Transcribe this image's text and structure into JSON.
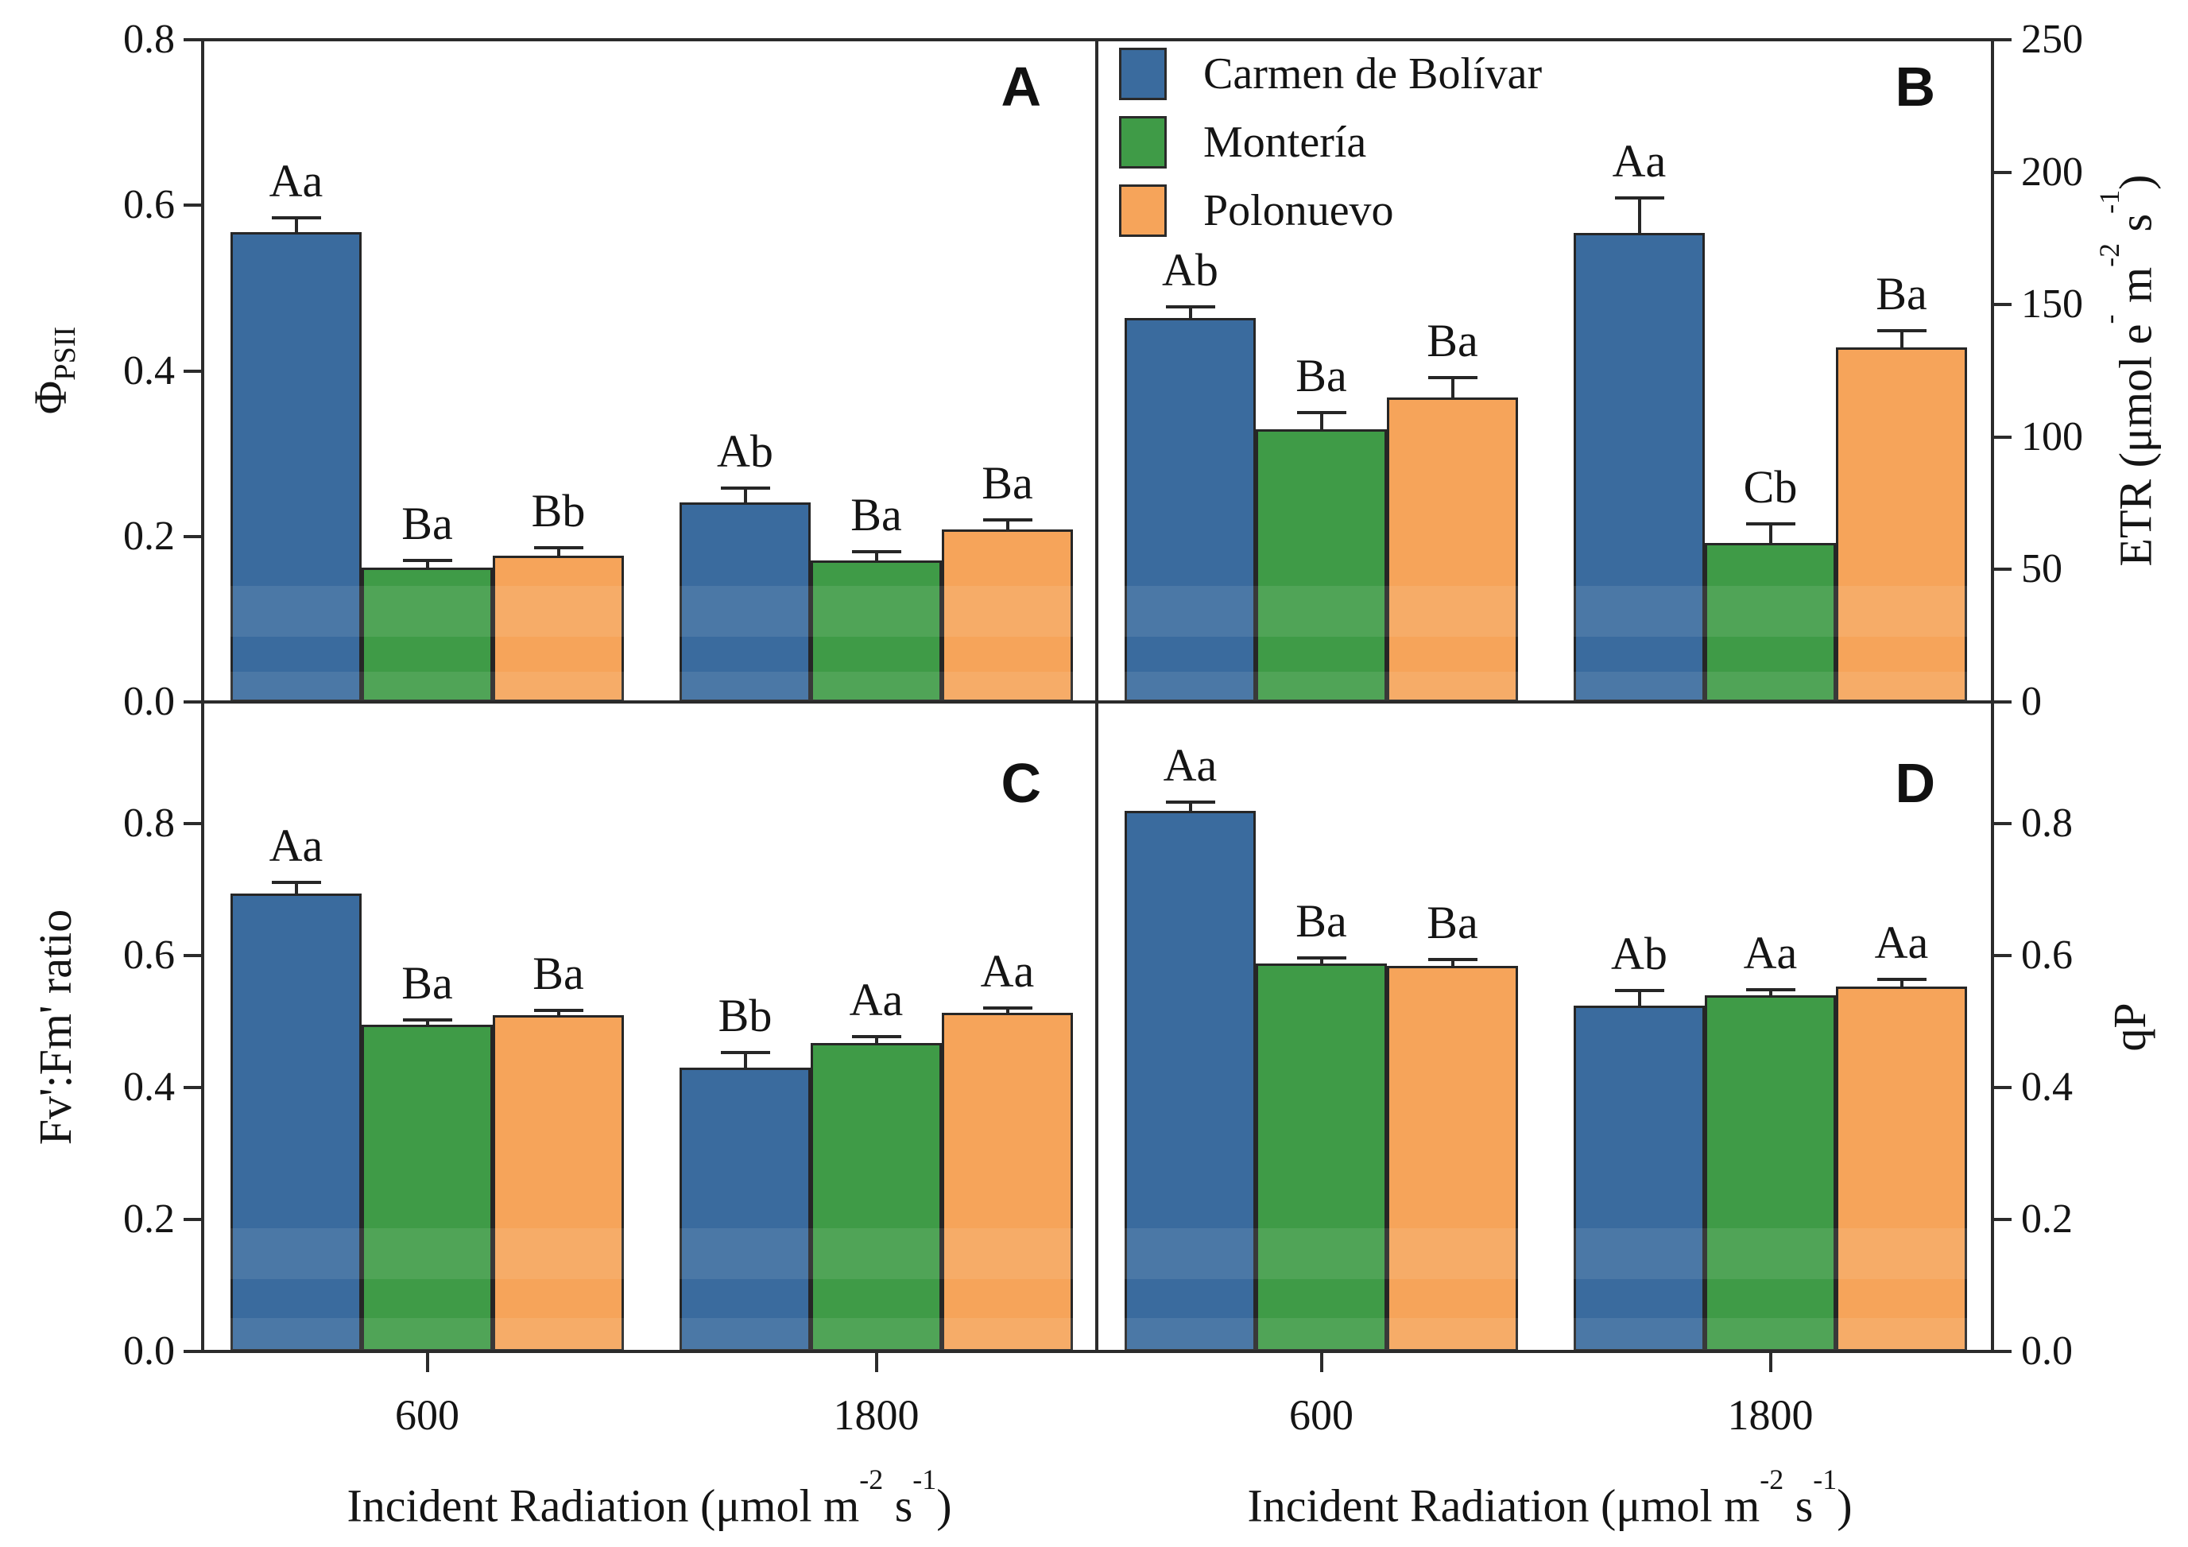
{
  "panels": {
    "a": "A",
    "b": "B",
    "c": "C",
    "d": "D"
  },
  "legend": {
    "items": [
      {
        "label": "Carmen de Bolívar",
        "color": "#3a6b9e"
      },
      {
        "label": "Montería",
        "color": "#3f9b47"
      },
      {
        "label": "Polonuevo",
        "color": "#f6a45a"
      }
    ]
  },
  "axis_titles": {
    "phi_main": "Φ",
    "phi_sub": "PSII",
    "c_label": "Fv':Fm' ratio",
    "d_label": "qP",
    "b_label_full": "ETR (μmol e⁻ m⁻² s⁻¹)",
    "b_parts": {
      "p1": "ETR (μmol e",
      "s1": "-",
      "p2": " m",
      "s2": "-2",
      "p3": " s",
      "s3": "-1",
      "p4": ")"
    }
  },
  "x_axis": {
    "tick_labels": [
      "600",
      "1800"
    ],
    "title_full": "Incident Radiation (μmol m⁻² s⁻¹)",
    "title_parts": {
      "p1": "Incident Radiation (μmol m",
      "s1": "-2",
      "p2": " s",
      "s2": "-1",
      "p3": ")"
    }
  },
  "chart_data": [
    {
      "type": "bar",
      "panel_letter": "A",
      "ylabel": "Φ_PSII",
      "ylabel_side": "left",
      "ylim": [
        0,
        0.8
      ],
      "yticks": [
        0,
        0.2,
        0.4,
        0.6,
        0.8
      ],
      "tick_decimals": true,
      "categories": [
        "600",
        "1800"
      ],
      "xlabel": "",
      "series": [
        {
          "name": "Carmen de Bolívar",
          "name_key": "carmen",
          "values": [
            0.568,
            0.241
          ],
          "errors": [
            0.016,
            0.016
          ],
          "letters": [
            "Aa",
            "Ab"
          ]
        },
        {
          "name": "Montería",
          "name_key": "monteria",
          "values": [
            0.162,
            0.171
          ],
          "errors": [
            0.008,
            0.01
          ],
          "letters": [
            "Ba",
            "Ba"
          ]
        },
        {
          "name": "Polonuevo",
          "name_key": "polonuevo",
          "values": [
            0.177,
            0.208
          ],
          "errors": [
            0.008,
            0.011
          ],
          "letters": [
            "Bb",
            "Ba"
          ]
        }
      ]
    },
    {
      "type": "bar",
      "panel_letter": "B",
      "ylabel": "ETR (μmol e⁻ m⁻² s⁻¹)",
      "ylabel_side": "right",
      "ylim": [
        0,
        250
      ],
      "yticks": [
        0,
        50,
        100,
        150,
        200,
        250
      ],
      "tick_decimals": false,
      "categories": [
        "600",
        "1800"
      ],
      "xlabel": "",
      "series": [
        {
          "name": "Carmen de Bolívar",
          "name_key": "carmen",
          "values": [
            145,
            177
          ],
          "errors": [
            4,
            13
          ],
          "letters": [
            "Ab",
            "Aa"
          ]
        },
        {
          "name": "Montería",
          "name_key": "monteria",
          "values": [
            103,
            60
          ],
          "errors": [
            6,
            7
          ],
          "letters": [
            "Ba",
            "Cb"
          ]
        },
        {
          "name": "Polonuevo",
          "name_key": "polonuevo",
          "values": [
            115,
            134
          ],
          "errors": [
            7,
            6
          ],
          "letters": [
            "Ba",
            "Ba"
          ]
        }
      ]
    },
    {
      "type": "bar",
      "panel_letter": "C",
      "ylabel": "Fv':Fm' ratio",
      "ylabel_side": "left",
      "ylim": [
        0,
        0.985
      ],
      "yticks": [
        0,
        0.2,
        0.4,
        0.6,
        0.8
      ],
      "tick_decimals": true,
      "categories": [
        "600",
        "1800"
      ],
      "xlabel": "Incident Radiation (μmol m⁻² s⁻¹)",
      "series": [
        {
          "name": "Carmen de Bolívar",
          "name_key": "carmen",
          "values": [
            0.695,
            0.43
          ],
          "errors": [
            0.015,
            0.022
          ],
          "letters": [
            "Aa",
            "Bb"
          ]
        },
        {
          "name": "Montería",
          "name_key": "monteria",
          "values": [
            0.495,
            0.468
          ],
          "errors": [
            0.007,
            0.008
          ],
          "letters": [
            "Ba",
            "Aa"
          ]
        },
        {
          "name": "Polonuevo",
          "name_key": "polonuevo",
          "values": [
            0.51,
            0.513
          ],
          "errors": [
            0.006,
            0.007
          ],
          "letters": [
            "Ba",
            "Aa"
          ]
        }
      ]
    },
    {
      "type": "bar",
      "panel_letter": "D",
      "ylabel": "qP",
      "ylabel_side": "right",
      "ylim": [
        0,
        0.985
      ],
      "yticks": [
        0,
        0.2,
        0.4,
        0.6,
        0.8
      ],
      "tick_decimals": true,
      "categories": [
        "600",
        "1800"
      ],
      "xlabel": "Incident Radiation (μmol m⁻² s⁻¹)",
      "series": [
        {
          "name": "Carmen de Bolívar",
          "name_key": "carmen",
          "values": [
            0.82,
            0.525
          ],
          "errors": [
            0.012,
            0.021
          ],
          "letters": [
            "Aa",
            "Ab"
          ]
        },
        {
          "name": "Montería",
          "name_key": "monteria",
          "values": [
            0.588,
            0.54
          ],
          "errors": [
            0.007,
            0.007
          ],
          "letters": [
            "Ba",
            "Aa"
          ]
        },
        {
          "name": "Polonuevo",
          "name_key": "polonuevo",
          "values": [
            0.585,
            0.553
          ],
          "errors": [
            0.008,
            0.01
          ],
          "letters": [
            "Ba",
            "Aa"
          ]
        }
      ]
    }
  ]
}
